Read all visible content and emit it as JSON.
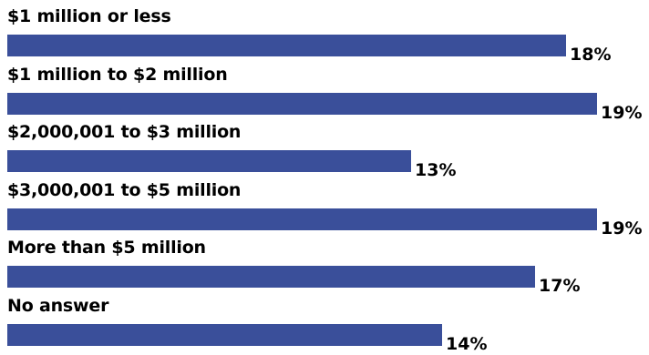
{
  "chart_data": {
    "type": "bar",
    "orientation": "horizontal",
    "categories": [
      "$1 million or less",
      "$1 million to $2 million",
      "$2,000,001 to $3 million",
      "$3,000,001 to $5 million",
      "More than $5 million",
      "No answer"
    ],
    "values": [
      18,
      19,
      13,
      19,
      17,
      14
    ],
    "value_labels": [
      "18%",
      "19%",
      "13%",
      "19%",
      "17%",
      "14%"
    ],
    "unit": "%",
    "xlim": [
      0,
      19
    ],
    "bar_color": "#3a4f9a",
    "grid": false,
    "legend": "none"
  }
}
